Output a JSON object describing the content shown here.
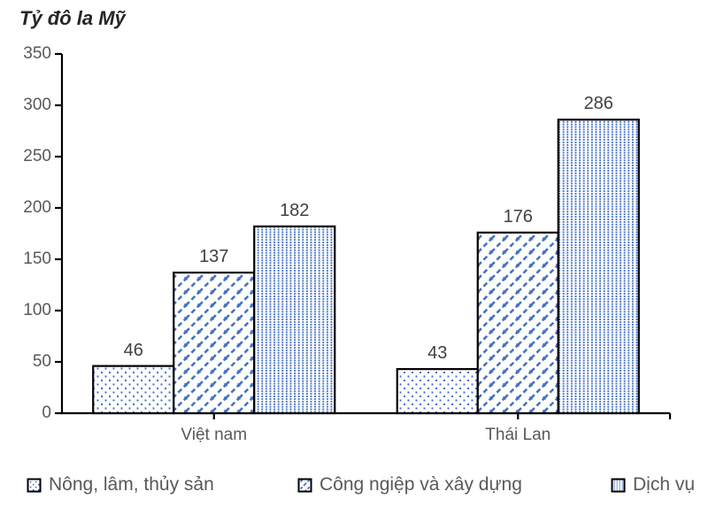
{
  "chart_data": {
    "type": "bar",
    "title": "Tỷ đô la Mỹ",
    "categories": [
      "Việt nam",
      "Thái Lan"
    ],
    "series": [
      {
        "name": "Nông, lâm, thủy sản",
        "values": [
          46,
          43
        ],
        "pattern": "sparse-dots"
      },
      {
        "name": "Công ngiệp và xây dựng",
        "values": [
          137,
          176
        ],
        "pattern": "diagonal-dash-weave"
      },
      {
        "name": "Dịch vụ",
        "values": [
          182,
          286
        ],
        "pattern": "vertical-dots"
      }
    ],
    "ylim": [
      0,
      350
    ],
    "ytick_step": 50,
    "grid": false,
    "legend_position": "bottom",
    "value_labels_shown": true,
    "colors": {
      "pattern_blue": "#4472C4",
      "axis": "#000000",
      "tick_label_gray": "#595959",
      "value_label_gray": "#404040",
      "title_color": "#262626"
    }
  }
}
